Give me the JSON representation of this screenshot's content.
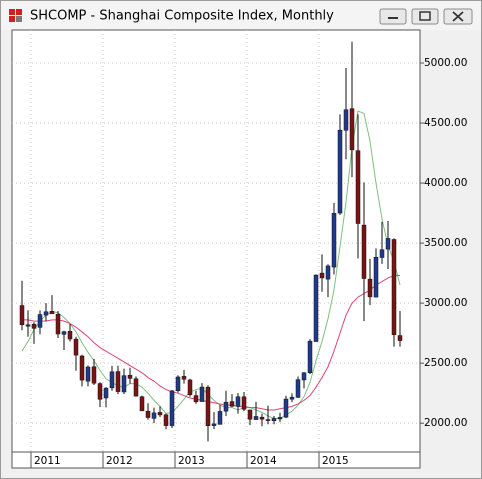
{
  "chart_data": {
    "type": "candlestick",
    "title": "SHCOMP - Shanghai Composite Index, Monthly",
    "categories": [
      null,
      null,
      "2011",
      null,
      null,
      null,
      null,
      null,
      null,
      null,
      null,
      null,
      null,
      null,
      "2012",
      null,
      null,
      null,
      null,
      null,
      null,
      null,
      null,
      null,
      null,
      null,
      "2013",
      null,
      null,
      null,
      null,
      null,
      null,
      null,
      null,
      null,
      null,
      null,
      "2014",
      null,
      null,
      null,
      null,
      null,
      null,
      null,
      null,
      null,
      null,
      null,
      "2015",
      null,
      null,
      null,
      null,
      null,
      null,
      null,
      null,
      null,
      null,
      null,
      null,
      null
    ],
    "open": [
      2980,
      2820,
      2825,
      2798,
      2900,
      2932,
      2907,
      2740,
      2766,
      2700,
      2560,
      2350,
      2470,
      2330,
      2210,
      2294,
      2430,
      2260,
      2400,
      2370,
      2220,
      2100,
      2040,
      2090,
      2070,
      1980,
      2270,
      2390,
      2360,
      2230,
      2180,
      2300,
      1980,
      1990,
      2100,
      2180,
      2140,
      2220,
      2110,
      2030,
      2050,
      2030,
      2020,
      2035,
      2050,
      2200,
      2215,
      2360,
      2420,
      2680,
      3250,
      3200,
      3300,
      3750,
      4440,
      4620,
      4270,
      3650,
      3200,
      3050,
      3380,
      3450,
      3530,
      2730
    ],
    "high": [
      3186,
      2940,
      2841,
      2940,
      3000,
      3067,
      2934,
      2770,
      2826,
      2720,
      2570,
      2480,
      2536,
      2340,
      2300,
      2478,
      2478,
      2454,
      2462,
      2390,
      2230,
      2166,
      2130,
      2140,
      2080,
      2276,
      2398,
      2444,
      2370,
      2270,
      2334,
      2316,
      2092,
      2150,
      2270,
      2242,
      2250,
      2260,
      2112,
      2178,
      2080,
      2146,
      2060,
      2087,
      2229,
      2248,
      2389,
      2425,
      2700,
      3240,
      3406,
      3324,
      3835,
      4572,
      4958,
      5178,
      4572,
      4006,
      3369,
      3456,
      3678,
      3684,
      3539,
      2934
    ],
    "low": [
      2774,
      2721,
      2661,
      2741,
      2850,
      2920,
      2710,
      2610,
      2680,
      2437,
      2307,
      2307,
      2318,
      2134,
      2132,
      2270,
      2242,
      2242,
      2330,
      2224,
      2100,
      2030,
      2000,
      2050,
      1949,
      1960,
      2255,
      2330,
      2220,
      2161,
      2180,
      1849,
      1951,
      1990,
      2060,
      2134,
      2080,
      2100,
      1984,
      2030,
      1975,
      1991,
      1991,
      2010,
      2042,
      2175,
      2210,
      2290,
      2410,
      2680,
      3095,
      3050,
      3240,
      3735,
      4198,
      4050,
      3373,
      2850,
      2983,
      3049,
      3327,
      3284,
      2638,
      2638
    ],
    "close": [
      2820,
      2808,
      2790,
      2905,
      2928,
      2911,
      2743,
      2762,
      2701,
      2567,
      2359,
      2468,
      2333,
      2199,
      2292,
      2428,
      2263,
      2396,
      2373,
      2225,
      2103,
      2047,
      2086,
      2069,
      1980,
      2269,
      2385,
      2366,
      2237,
      2178,
      2301,
      1979,
      1994,
      2098,
      2175,
      2141,
      2220,
      2116,
      2033,
      2056,
      2033,
      2026,
      2039,
      2048,
      2201,
      2217,
      2363,
      2420,
      2683,
      3234,
      3210,
      3310,
      3748,
      4441,
      4611,
      4277,
      3663,
      3205,
      3052,
      3382,
      3445,
      3539,
      2737,
      2688
    ],
    "up_color": "#1f3a8a",
    "down_color": "#7a1414",
    "lines": [
      {
        "color": "#7fbf7f",
        "values": [
          2600,
          2680,
          2780,
          2850,
          2900,
          2930,
          2920,
          2880,
          2830,
          2760,
          2670,
          2590,
          2520,
          2440,
          2370,
          2340,
          2310,
          2300,
          2330,
          2330,
          2300,
          2250,
          2190,
          2140,
          2080,
          2090,
          2140,
          2200,
          2260,
          2280,
          2290,
          2240,
          2190,
          2150,
          2130,
          2130,
          2110,
          2130,
          2130,
          2110,
          2090,
          2060,
          2040,
          2040,
          2070,
          2100,
          2150,
          2220,
          2340,
          2520,
          2680,
          2870,
          3110,
          3470,
          3840,
          4300,
          4600,
          4580,
          4350,
          4000,
          3700,
          3480,
          3350,
          3150
        ]
      },
      {
        "color": "#e0407a",
        "values": [
          2860,
          2860,
          2850,
          2850,
          2850,
          2860,
          2860,
          2850,
          2830,
          2800,
          2760,
          2720,
          2670,
          2630,
          2600,
          2570,
          2540,
          2510,
          2480,
          2450,
          2420,
          2380,
          2350,
          2310,
          2280,
          2260,
          2250,
          2230,
          2210,
          2200,
          2190,
          2180,
          2170,
          2160,
          2150,
          2150,
          2140,
          2140,
          2130,
          2130,
          2120,
          2110,
          2110,
          2120,
          2130,
          2140,
          2160,
          2190,
          2230,
          2300,
          2380,
          2470,
          2600,
          2750,
          2900,
          3000,
          3050,
          3080,
          3110,
          3150,
          3180,
          3210,
          3230,
          3230
        ]
      }
    ],
    "ylim": [
      1760,
      5275
    ],
    "yticks": [
      {
        "value": 2000,
        "label": "2000.00"
      },
      {
        "value": 2500,
        "label": "2500.00"
      },
      {
        "value": 3000,
        "label": "3000.00"
      },
      {
        "value": 3500,
        "label": "3500.00"
      },
      {
        "value": 4000,
        "label": "4000.00"
      },
      {
        "value": 4500,
        "label": "4500.00"
      },
      {
        "value": 5000,
        "label": "5000.00"
      }
    ],
    "grid": true
  }
}
